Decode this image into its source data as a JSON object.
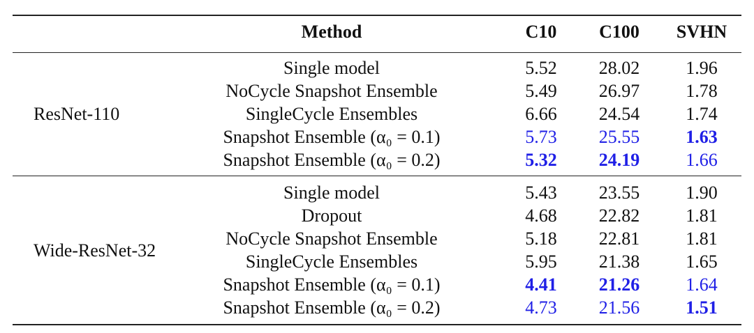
{
  "table": {
    "header": [
      "Method",
      "C10",
      "C100",
      "SVHN"
    ],
    "emphasis_color": "#1f1fe6",
    "groups": [
      {
        "label": "ResNet-110",
        "rows": [
          {
            "method": "Single model",
            "values": [
              "5.52",
              "28.02",
              "1.96"
            ],
            "blue": [
              false,
              false,
              false
            ],
            "bold": [
              false,
              false,
              false
            ]
          },
          {
            "method": "NoCycle Snapshot Ensemble",
            "values": [
              "5.49",
              "26.97",
              "1.78"
            ],
            "blue": [
              false,
              false,
              false
            ],
            "bold": [
              false,
              false,
              false
            ]
          },
          {
            "method": "SingleCycle Ensembles",
            "values": [
              "6.66",
              "24.54",
              "1.74"
            ],
            "blue": [
              false,
              false,
              false
            ],
            "bold": [
              false,
              false,
              false
            ]
          },
          {
            "method": "Snapshot Ensemble (α₀ = 0.1)",
            "values": [
              "5.73",
              "25.55",
              "1.63"
            ],
            "blue": [
              true,
              true,
              true
            ],
            "bold": [
              false,
              false,
              true
            ]
          },
          {
            "method": "Snapshot Ensemble (α₀ = 0.2)",
            "values": [
              "5.32",
              "24.19",
              "1.66"
            ],
            "blue": [
              true,
              true,
              true
            ],
            "bold": [
              true,
              true,
              false
            ]
          }
        ]
      },
      {
        "label": "Wide-ResNet-32",
        "rows": [
          {
            "method": "Single model",
            "values": [
              "5.43",
              "23.55",
              "1.90"
            ],
            "blue": [
              false,
              false,
              false
            ],
            "bold": [
              false,
              false,
              false
            ]
          },
          {
            "method": "Dropout",
            "values": [
              "4.68",
              "22.82",
              "1.81"
            ],
            "blue": [
              false,
              false,
              false
            ],
            "bold": [
              false,
              false,
              false
            ]
          },
          {
            "method": "NoCycle Snapshot Ensemble",
            "values": [
              "5.18",
              "22.81",
              "1.81"
            ],
            "blue": [
              false,
              false,
              false
            ],
            "bold": [
              false,
              false,
              false
            ]
          },
          {
            "method": "SingleCycle Ensembles",
            "values": [
              "5.95",
              "21.38",
              "1.65"
            ],
            "blue": [
              false,
              false,
              false
            ],
            "bold": [
              false,
              false,
              false
            ]
          },
          {
            "method": "Snapshot Ensemble (α₀ = 0.1)",
            "values": [
              "4.41",
              "21.26",
              "1.64"
            ],
            "blue": [
              true,
              true,
              true
            ],
            "bold": [
              true,
              true,
              false
            ]
          },
          {
            "method": "Snapshot Ensemble (α₀ = 0.2)",
            "values": [
              "4.73",
              "21.56",
              "1.51"
            ],
            "blue": [
              true,
              true,
              true
            ],
            "bold": [
              false,
              false,
              true
            ]
          }
        ]
      }
    ]
  }
}
